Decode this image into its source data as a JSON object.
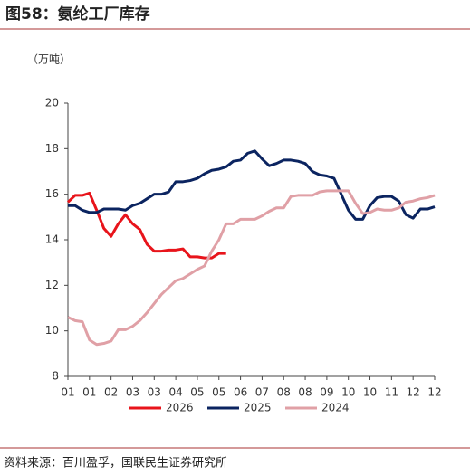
{
  "title": "图58：氨纶工厂库存",
  "source": "资料来源：百川盈孚，国联民生证券研究所",
  "chart_data": {
    "type": "line",
    "y_label": "（万吨）",
    "categories": [
      "01",
      null,
      null,
      "01",
      null,
      null,
      "02",
      null,
      null,
      "03",
      null,
      null,
      "03",
      null,
      null,
      "04",
      null,
      null,
      "05",
      null,
      null,
      "05",
      null,
      null,
      "06",
      null,
      null,
      "07",
      null,
      null,
      "08",
      null,
      null,
      "08",
      null,
      null,
      "09",
      null,
      null,
      "10",
      null,
      null,
      "10",
      null,
      null,
      "11",
      null,
      null,
      "12",
      null,
      null,
      "12"
    ],
    "ylim": [
      8,
      20
    ],
    "yticks": [
      8,
      10,
      12,
      14,
      16,
      18,
      20
    ],
    "legend": "bottom",
    "series": [
      {
        "name": "2026",
        "color": "#e8141b",
        "values": [
          15.65,
          15.95,
          15.95,
          16.05,
          15.3,
          14.5,
          14.15,
          14.7,
          15.1,
          14.7,
          14.45,
          13.8,
          13.5,
          13.5,
          13.55,
          13.55,
          13.6,
          13.25,
          13.25,
          13.2,
          13.2,
          13.4,
          13.4,
          null,
          null,
          null,
          null,
          null,
          null,
          null,
          null,
          null,
          null,
          null,
          null,
          null,
          null,
          null,
          null,
          null,
          null,
          null,
          null,
          null,
          null,
          null,
          null,
          null,
          null,
          null,
          null,
          null
        ]
      },
      {
        "name": "2025",
        "color": "#0b2460",
        "values": [
          15.5,
          15.5,
          15.3,
          15.2,
          15.2,
          15.35,
          15.35,
          15.35,
          15.3,
          15.5,
          15.6,
          15.8,
          16.0,
          16.0,
          16.1,
          16.55,
          16.55,
          16.6,
          16.7,
          16.9,
          17.05,
          17.1,
          17.2,
          17.45,
          17.5,
          17.8,
          17.9,
          17.55,
          17.25,
          17.35,
          17.5,
          17.5,
          17.45,
          17.35,
          17.0,
          16.85,
          16.8,
          16.7,
          16.0,
          15.3,
          14.9,
          14.9,
          15.5,
          15.85,
          15.9,
          15.9,
          15.7,
          15.1,
          14.95,
          15.35,
          15.35,
          15.45
        ]
      },
      {
        "name": "2024",
        "color": "#e0a0a6",
        "values": [
          10.6,
          10.45,
          10.4,
          9.6,
          9.4,
          9.45,
          9.55,
          10.05,
          10.05,
          10.2,
          10.45,
          10.8,
          11.2,
          11.6,
          11.9,
          12.2,
          12.3,
          12.5,
          12.7,
          12.85,
          13.5,
          14.0,
          14.7,
          14.7,
          14.9,
          14.9,
          14.9,
          15.05,
          15.25,
          15.4,
          15.4,
          15.9,
          15.95,
          15.95,
          15.95,
          16.1,
          16.15,
          16.15,
          16.15,
          16.15,
          15.6,
          15.15,
          15.2,
          15.35,
          15.3,
          15.3,
          15.4,
          15.65,
          15.7,
          15.8,
          15.85,
          15.95
        ]
      }
    ]
  }
}
